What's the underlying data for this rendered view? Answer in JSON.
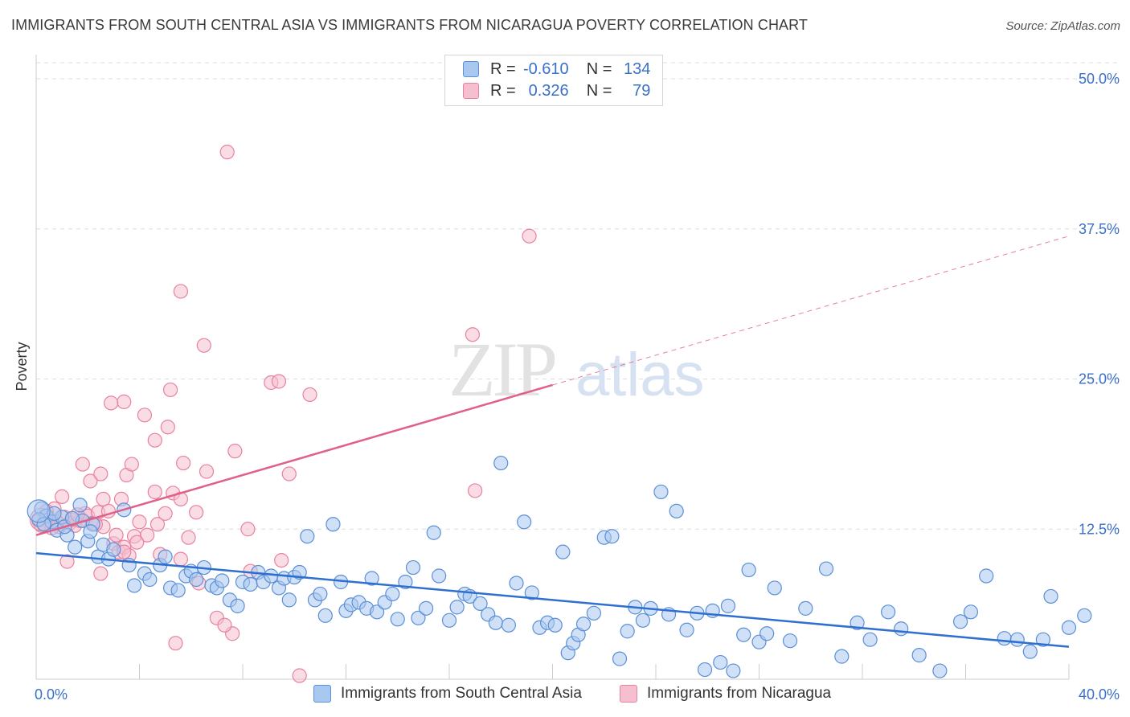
{
  "header": {
    "title": "IMMIGRANTS FROM SOUTH CENTRAL ASIA VS IMMIGRANTS FROM NICARAGUA POVERTY CORRELATION CHART",
    "source": "Source: ZipAtlas.com"
  },
  "watermark": {
    "zip": "ZIP",
    "atlas": "atlas"
  },
  "legend": {
    "r_label": "R =",
    "n_label": "N =",
    "series_1": {
      "r": "-0.610",
      "n": "134"
    },
    "series_2": {
      "r": "0.326",
      "n": "79"
    }
  },
  "colors": {
    "series_1_fill": "#a9c8f0",
    "series_1_stroke": "#5b8fd6",
    "series_1_line": "#2e6fd0",
    "series_2_fill": "#f6bfd0",
    "series_2_stroke": "#e8829f",
    "series_2_line": "#e0608a",
    "axis_label": "#3a70c8",
    "grid": "#dddddd"
  },
  "chart_data": {
    "type": "scatter",
    "title": "IMMIGRANTS FROM SOUTH CENTRAL ASIA VS IMMIGRANTS FROM NICARAGUA POVERTY CORRELATION CHART",
    "xlabel": "",
    "ylabel": "Poverty",
    "xlim": [
      0,
      40
    ],
    "ylim": [
      0,
      50
    ],
    "x_tick_labels": [
      "0.0%",
      "40.0%"
    ],
    "y_ticks": [
      12.5,
      25.0,
      37.5,
      50.0
    ],
    "y_tick_labels": [
      "12.5%",
      "25.0%",
      "37.5%",
      "50.0%"
    ],
    "grid": "horizontal dashed",
    "legend_position": "top-center",
    "series": [
      {
        "name": "Immigrants from South Central Asia",
        "r": -0.61,
        "n": 134,
        "trend": {
          "x": [
            0,
            40
          ],
          "y": [
            10.5,
            2.7
          ]
        },
        "points": [
          [
            0.2,
            14.2
          ],
          [
            0.4,
            13.6
          ],
          [
            0.6,
            13.1
          ],
          [
            0.8,
            12.4
          ],
          [
            1.0,
            13.5
          ],
          [
            1.2,
            12.0
          ],
          [
            1.5,
            11.0
          ],
          [
            1.8,
            13.2
          ],
          [
            2.0,
            11.5
          ],
          [
            2.2,
            12.9
          ],
          [
            2.4,
            10.2
          ],
          [
            2.6,
            11.2
          ],
          [
            2.8,
            10.0
          ],
          [
            3.0,
            10.8
          ],
          [
            3.4,
            14.1
          ],
          [
            3.6,
            9.5
          ],
          [
            3.8,
            7.8
          ],
          [
            4.2,
            8.8
          ],
          [
            4.4,
            8.3
          ],
          [
            4.8,
            9.5
          ],
          [
            5.0,
            10.2
          ],
          [
            5.2,
            7.6
          ],
          [
            5.5,
            7.4
          ],
          [
            5.8,
            8.6
          ],
          [
            6.0,
            9.0
          ],
          [
            6.2,
            8.3
          ],
          [
            6.5,
            9.3
          ],
          [
            6.8,
            7.8
          ],
          [
            7.0,
            7.6
          ],
          [
            7.2,
            8.2
          ],
          [
            7.5,
            6.6
          ],
          [
            7.8,
            6.1
          ],
          [
            8.0,
            8.1
          ],
          [
            8.3,
            7.9
          ],
          [
            8.6,
            8.9
          ],
          [
            8.8,
            8.1
          ],
          [
            9.1,
            8.6
          ],
          [
            9.4,
            7.6
          ],
          [
            9.6,
            8.4
          ],
          [
            9.8,
            6.6
          ],
          [
            10.0,
            8.5
          ],
          [
            10.2,
            8.9
          ],
          [
            10.5,
            11.9
          ],
          [
            10.8,
            6.6
          ],
          [
            11.0,
            7.1
          ],
          [
            11.2,
            5.3
          ],
          [
            11.5,
            12.9
          ],
          [
            11.8,
            8.1
          ],
          [
            12.0,
            5.7
          ],
          [
            12.2,
            6.2
          ],
          [
            12.5,
            6.4
          ],
          [
            12.8,
            5.9
          ],
          [
            13.0,
            8.4
          ],
          [
            13.2,
            5.6
          ],
          [
            13.5,
            6.4
          ],
          [
            13.8,
            7.1
          ],
          [
            14.0,
            5.0
          ],
          [
            14.3,
            8.1
          ],
          [
            14.6,
            9.3
          ],
          [
            14.8,
            5.1
          ],
          [
            15.1,
            5.9
          ],
          [
            15.4,
            12.2
          ],
          [
            15.6,
            8.6
          ],
          [
            16.0,
            4.9
          ],
          [
            16.3,
            6.0
          ],
          [
            16.6,
            7.1
          ],
          [
            16.8,
            6.9
          ],
          [
            17.2,
            6.3
          ],
          [
            17.5,
            5.4
          ],
          [
            17.8,
            4.7
          ],
          [
            18.0,
            18.0
          ],
          [
            18.3,
            4.5
          ],
          [
            18.6,
            8.0
          ],
          [
            18.9,
            13.1
          ],
          [
            19.2,
            7.2
          ],
          [
            19.5,
            4.3
          ],
          [
            19.8,
            4.7
          ],
          [
            20.1,
            4.5
          ],
          [
            20.4,
            10.6
          ],
          [
            20.6,
            2.2
          ],
          [
            20.8,
            3.0
          ],
          [
            21.0,
            3.7
          ],
          [
            21.2,
            4.6
          ],
          [
            21.6,
            5.5
          ],
          [
            22.0,
            11.8
          ],
          [
            22.3,
            11.9
          ],
          [
            22.6,
            1.7
          ],
          [
            22.9,
            4.0
          ],
          [
            23.2,
            6.0
          ],
          [
            23.5,
            4.9
          ],
          [
            23.8,
            5.9
          ],
          [
            24.2,
            15.6
          ],
          [
            24.5,
            5.4
          ],
          [
            24.8,
            14.0
          ],
          [
            25.2,
            4.1
          ],
          [
            25.6,
            5.5
          ],
          [
            25.9,
            0.8
          ],
          [
            26.2,
            5.7
          ],
          [
            26.5,
            1.4
          ],
          [
            26.8,
            6.1
          ],
          [
            27.0,
            0.7
          ],
          [
            27.4,
            3.7
          ],
          [
            27.6,
            9.1
          ],
          [
            28.0,
            3.1
          ],
          [
            28.3,
            3.8
          ],
          [
            28.6,
            7.6
          ],
          [
            29.2,
            3.2
          ],
          [
            29.8,
            5.9
          ],
          [
            30.6,
            9.2
          ],
          [
            31.2,
            1.9
          ],
          [
            31.8,
            4.7
          ],
          [
            32.3,
            3.3
          ],
          [
            33.0,
            5.6
          ],
          [
            33.5,
            4.2
          ],
          [
            34.2,
            2.0
          ],
          [
            35.0,
            0.7
          ],
          [
            35.8,
            4.8
          ],
          [
            36.2,
            5.6
          ],
          [
            36.8,
            8.6
          ],
          [
            37.5,
            3.4
          ],
          [
            38.0,
            3.3
          ],
          [
            38.5,
            2.3
          ],
          [
            39.0,
            3.3
          ],
          [
            39.3,
            6.9
          ],
          [
            40.0,
            4.3
          ],
          [
            40.6,
            5.3
          ],
          [
            41.2,
            3.0
          ],
          [
            0.1,
            13.3
          ],
          [
            0.3,
            12.9
          ],
          [
            0.7,
            13.8
          ],
          [
            1.1,
            12.7
          ],
          [
            1.4,
            13.4
          ],
          [
            1.7,
            14.5
          ],
          [
            2.1,
            12.3
          ]
        ]
      },
      {
        "name": "Immigrants from Nicaragua",
        "r": 0.326,
        "n": 79,
        "trend": {
          "x": [
            0,
            20
          ],
          "y": [
            12.0,
            24.5
          ],
          "dashed_extension": {
            "x": [
              20,
              40
            ],
            "y": [
              24.5,
              36.9
            ]
          }
        },
        "points": [
          [
            0.1,
            13.2
          ],
          [
            0.3,
            13.0
          ],
          [
            0.5,
            13.4
          ],
          [
            0.7,
            14.2
          ],
          [
            0.9,
            12.7
          ],
          [
            1.1,
            13.5
          ],
          [
            1.3,
            13.0
          ],
          [
            1.5,
            12.8
          ],
          [
            1.7,
            13.2
          ],
          [
            1.9,
            13.8
          ],
          [
            2.0,
            13.6
          ],
          [
            2.2,
            13.0
          ],
          [
            2.4,
            13.9
          ],
          [
            2.6,
            12.7
          ],
          [
            2.8,
            14.0
          ],
          [
            3.0,
            11.3
          ],
          [
            3.2,
            10.6
          ],
          [
            3.4,
            11.0
          ],
          [
            3.6,
            10.3
          ],
          [
            3.8,
            11.9
          ],
          [
            0.8,
            13.1
          ],
          [
            1.0,
            15.2
          ],
          [
            1.4,
            13.3
          ],
          [
            1.8,
            17.9
          ],
          [
            2.1,
            16.5
          ],
          [
            2.5,
            17.1
          ],
          [
            2.6,
            15.0
          ],
          [
            3.1,
            12.0
          ],
          [
            3.3,
            15.0
          ],
          [
            3.5,
            17.0
          ],
          [
            3.7,
            17.9
          ],
          [
            4.0,
            13.1
          ],
          [
            4.3,
            12.0
          ],
          [
            4.6,
            15.6
          ],
          [
            4.7,
            12.9
          ],
          [
            5.0,
            13.8
          ],
          [
            5.3,
            15.5
          ],
          [
            5.6,
            15.0
          ],
          [
            5.9,
            11.8
          ],
          [
            6.2,
            13.9
          ],
          [
            1.2,
            9.8
          ],
          [
            2.5,
            8.8
          ],
          [
            3.4,
            10.6
          ],
          [
            4.8,
            10.4
          ],
          [
            5.6,
            10.0
          ],
          [
            6.3,
            8.0
          ],
          [
            7.0,
            5.1
          ],
          [
            7.6,
            3.8
          ],
          [
            8.3,
            9.0
          ],
          [
            9.5,
            9.9
          ],
          [
            3.4,
            23.1
          ],
          [
            4.2,
            22.0
          ],
          [
            4.6,
            19.9
          ],
          [
            5.1,
            21.0
          ],
          [
            5.7,
            18.0
          ],
          [
            6.6,
            17.3
          ],
          [
            7.7,
            19.0
          ],
          [
            8.2,
            12.5
          ],
          [
            9.8,
            17.1
          ],
          [
            10.2,
            0.3
          ],
          [
            2.9,
            23.0
          ],
          [
            5.2,
            24.1
          ],
          [
            9.1,
            24.7
          ],
          [
            9.4,
            24.8
          ],
          [
            10.6,
            23.7
          ],
          [
            17.0,
            15.7
          ],
          [
            6.5,
            27.8
          ],
          [
            16.9,
            28.7
          ],
          [
            5.6,
            32.3
          ],
          [
            19.1,
            36.9
          ],
          [
            7.4,
            43.9
          ],
          [
            0.2,
            12.8
          ],
          [
            0.4,
            14.0
          ],
          [
            0.6,
            12.6
          ],
          [
            1.6,
            13.7
          ],
          [
            2.3,
            12.9
          ],
          [
            3.9,
            11.4
          ],
          [
            5.4,
            3.0
          ],
          [
            7.3,
            4.5
          ]
        ]
      }
    ]
  },
  "bottom_legend": {
    "item_1": "Immigrants from South Central Asia",
    "item_2": "Immigrants from Nicaragua"
  }
}
